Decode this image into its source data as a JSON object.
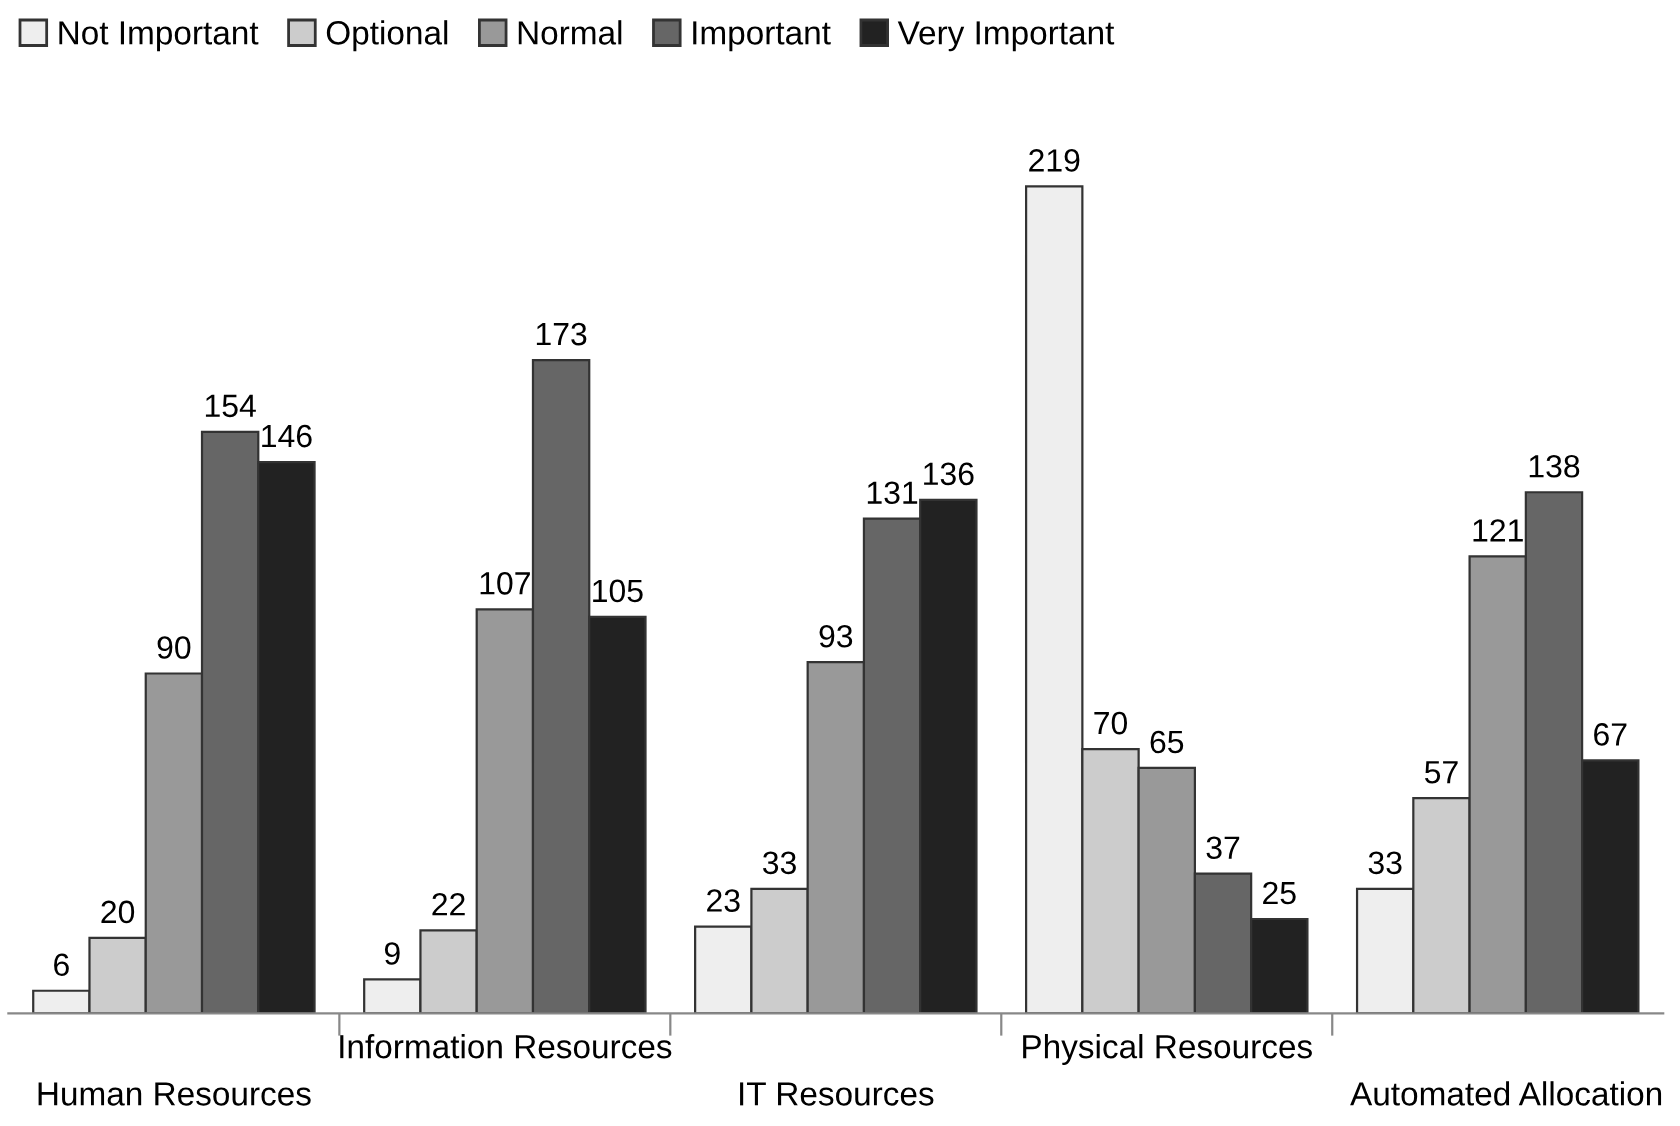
{
  "chart_data": {
    "type": "bar",
    "categories": [
      "Human Resources",
      "Information Resources",
      "IT Resources",
      "Physical Resources",
      "Automated Allocation"
    ],
    "series": [
      {
        "name": "Not Important",
        "color": "#eeeeee",
        "values": [
          6,
          9,
          23,
          219,
          33
        ]
      },
      {
        "name": "Optional",
        "color": "#cccccc",
        "values": [
          20,
          22,
          33,
          70,
          57
        ]
      },
      {
        "name": "Normal",
        "color": "#999999",
        "values": [
          90,
          107,
          93,
          65,
          121
        ]
      },
      {
        "name": "Important",
        "color": "#666666",
        "values": [
          154,
          173,
          131,
          37,
          138
        ]
      },
      {
        "name": "Very Important",
        "color": "#222222",
        "values": [
          146,
          105,
          136,
          25,
          67
        ]
      }
    ],
    "data_labels": true,
    "legend": "top left",
    "grid": false,
    "tick_labels": "x"
  }
}
